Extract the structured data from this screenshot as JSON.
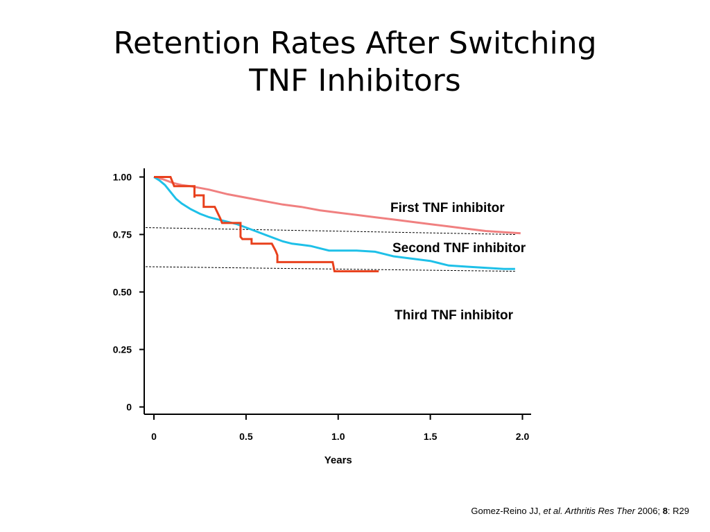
{
  "slide": {
    "title_line1": "Retention Rates After Switching",
    "title_line2": "TNF Inhibitors"
  },
  "citation": {
    "authors": "Gomez-Reino JJ, ",
    "etal": "et al.",
    "journal": " Arthritis Res Ther",
    "year": " 2006; ",
    "volume": "8",
    "pages": ": R29"
  },
  "chart_data": {
    "type": "line",
    "title": "",
    "xlabel": "Years",
    "ylabel": "",
    "xlim": [
      0,
      2.0
    ],
    "ylim": [
      0,
      1.0
    ],
    "x_ticks": [
      "0",
      "0.5",
      "1.0",
      "1.5",
      "2.0"
    ],
    "y_ticks": [
      "0",
      "0.25",
      "0.50",
      "0.75",
      "1.00"
    ],
    "grid": false,
    "legend": "inline labels at right end of each series",
    "reference_lines": [
      {
        "style": "dashed",
        "from": [
          0,
          0.78
        ],
        "to": [
          1.96,
          0.75
        ]
      },
      {
        "style": "dashed",
        "from": [
          0,
          0.61
        ],
        "to": [
          1.96,
          0.59
        ]
      }
    ],
    "series": [
      {
        "name": "First TNF inhibitor",
        "color": "#f08080",
        "step": false,
        "points": [
          [
            0,
            1.0
          ],
          [
            0.05,
            0.99
          ],
          [
            0.1,
            0.975
          ],
          [
            0.15,
            0.965
          ],
          [
            0.2,
            0.96
          ],
          [
            0.3,
            0.945
          ],
          [
            0.4,
            0.925
          ],
          [
            0.5,
            0.91
          ],
          [
            0.6,
            0.895
          ],
          [
            0.7,
            0.88
          ],
          [
            0.8,
            0.87
          ],
          [
            0.9,
            0.855
          ],
          [
            1.0,
            0.845
          ],
          [
            1.1,
            0.835
          ],
          [
            1.2,
            0.825
          ],
          [
            1.3,
            0.815
          ],
          [
            1.4,
            0.805
          ],
          [
            1.5,
            0.795
          ],
          [
            1.6,
            0.785
          ],
          [
            1.7,
            0.775
          ],
          [
            1.8,
            0.765
          ],
          [
            1.9,
            0.76
          ],
          [
            1.99,
            0.755
          ]
        ]
      },
      {
        "name": "Second TNF inhibitor",
        "color": "#1ec0e8",
        "step": false,
        "points": [
          [
            0,
            1.0
          ],
          [
            0.03,
            0.985
          ],
          [
            0.06,
            0.965
          ],
          [
            0.09,
            0.935
          ],
          [
            0.12,
            0.905
          ],
          [
            0.15,
            0.885
          ],
          [
            0.2,
            0.86
          ],
          [
            0.25,
            0.84
          ],
          [
            0.3,
            0.825
          ],
          [
            0.35,
            0.815
          ],
          [
            0.4,
            0.805
          ],
          [
            0.45,
            0.795
          ],
          [
            0.5,
            0.78
          ],
          [
            0.55,
            0.765
          ],
          [
            0.6,
            0.75
          ],
          [
            0.65,
            0.735
          ],
          [
            0.7,
            0.72
          ],
          [
            0.75,
            0.71
          ],
          [
            0.8,
            0.705
          ],
          [
            0.85,
            0.7
          ],
          [
            0.9,
            0.69
          ],
          [
            0.95,
            0.68
          ],
          [
            1.0,
            0.68
          ],
          [
            1.1,
            0.68
          ],
          [
            1.2,
            0.675
          ],
          [
            1.25,
            0.665
          ],
          [
            1.3,
            0.655
          ],
          [
            1.4,
            0.645
          ],
          [
            1.5,
            0.635
          ],
          [
            1.55,
            0.625
          ],
          [
            1.6,
            0.615
          ],
          [
            1.7,
            0.61
          ],
          [
            1.8,
            0.605
          ],
          [
            1.9,
            0.6
          ],
          [
            1.96,
            0.6
          ]
        ]
      },
      {
        "name": "Third TNF inhibitor",
        "color": "#e8401c",
        "step": true,
        "points": [
          [
            0,
            1.0
          ],
          [
            0.09,
            1.0
          ],
          [
            0.11,
            0.96
          ],
          [
            0.22,
            0.96
          ],
          [
            0.22,
            0.91
          ],
          [
            0.22,
            0.92
          ],
          [
            0.27,
            0.92
          ],
          [
            0.27,
            0.87
          ],
          [
            0.33,
            0.87
          ],
          [
            0.36,
            0.82
          ],
          [
            0.37,
            0.8
          ],
          [
            0.47,
            0.8
          ],
          [
            0.47,
            0.74
          ],
          [
            0.48,
            0.73
          ],
          [
            0.53,
            0.73
          ],
          [
            0.53,
            0.71
          ],
          [
            0.64,
            0.71
          ],
          [
            0.66,
            0.68
          ],
          [
            0.67,
            0.66
          ],
          [
            0.67,
            0.63
          ],
          [
            0.97,
            0.63
          ],
          [
            0.98,
            0.59
          ],
          [
            1.22,
            0.59
          ]
        ]
      }
    ]
  }
}
